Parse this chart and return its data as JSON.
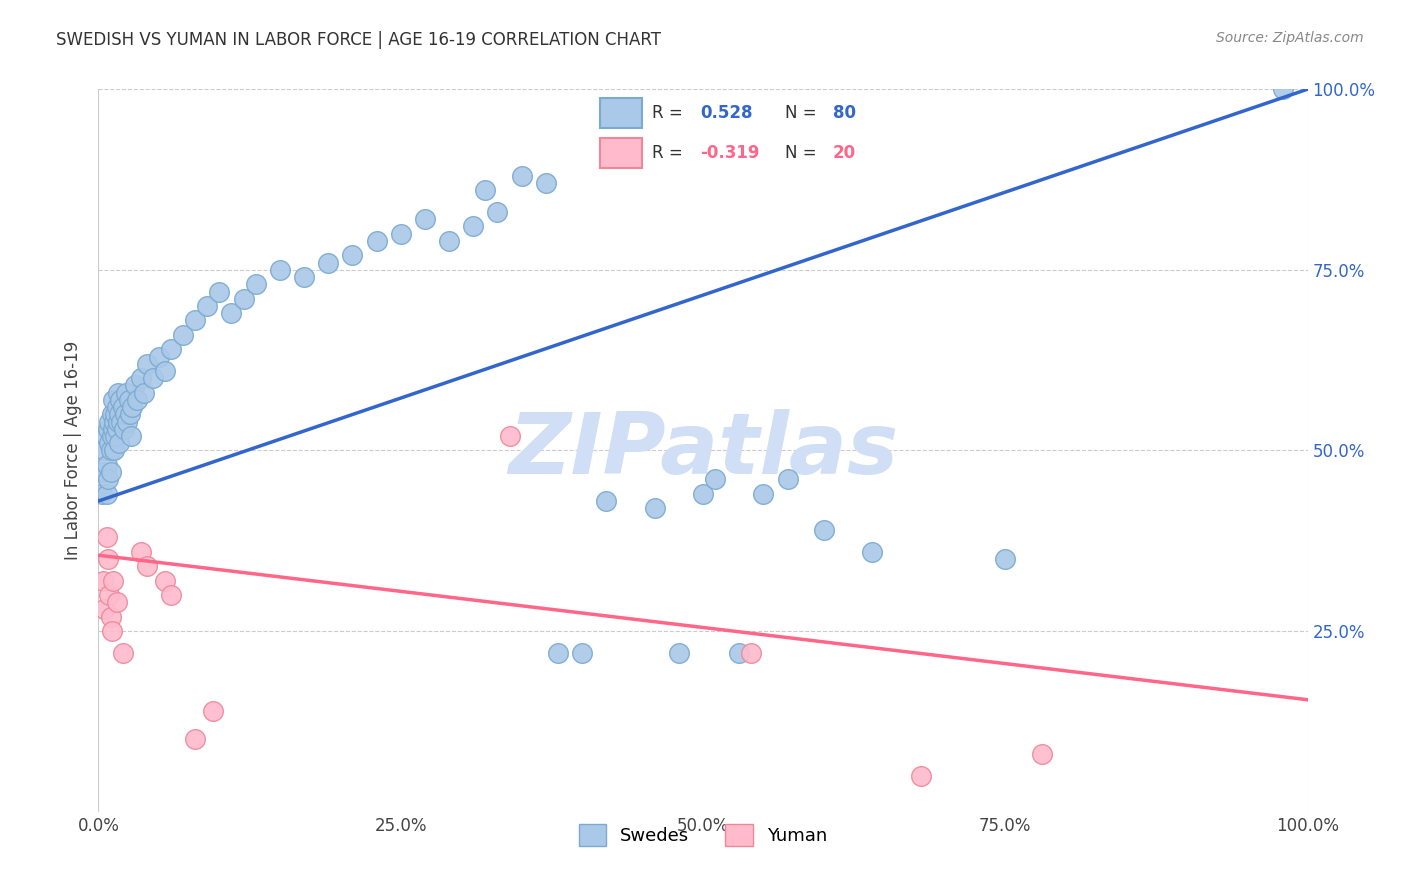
{
  "title": "SWEDISH VS YUMAN IN LABOR FORCE | AGE 16-19 CORRELATION CHART",
  "source": "Source: ZipAtlas.com",
  "ylabel": "In Labor Force | Age 16-19",
  "xlim": [
    0.0,
    1.0
  ],
  "ylim": [
    0.0,
    1.0
  ],
  "xtick_labels": [
    "0.0%",
    "25.0%",
    "50.0%",
    "75.0%",
    "100.0%"
  ],
  "xtick_positions": [
    0.0,
    0.25,
    0.5,
    0.75,
    1.0
  ],
  "ytick_labels_right": [
    "100.0%",
    "75.0%",
    "50.0%",
    "25.0%"
  ],
  "ytick_positions_right": [
    1.0,
    0.75,
    0.5,
    0.25
  ],
  "swedes_color": "#aac8e8",
  "swedes_edge": "#7aaad0",
  "yuman_color": "#ffbbcc",
  "yuman_edge": "#ee8899",
  "swedes_line_color": "#3366cc",
  "yuman_line_color": "#ff6688",
  "watermark": "ZIPatlas",
  "watermark_color": "#d0dff5",
  "swedes_line_x0": 0.0,
  "swedes_line_y0": 0.43,
  "swedes_line_x1": 1.0,
  "swedes_line_y1": 1.0,
  "yuman_line_x0": 0.0,
  "yuman_line_y0": 0.355,
  "yuman_line_x1": 1.0,
  "yuman_line_y1": 0.155,
  "swedes_points": [
    [
      0.003,
      0.44
    ],
    [
      0.004,
      0.47
    ],
    [
      0.005,
      0.5
    ],
    [
      0.006,
      0.52
    ],
    [
      0.007,
      0.48
    ],
    [
      0.007,
      0.44
    ],
    [
      0.008,
      0.53
    ],
    [
      0.008,
      0.46
    ],
    [
      0.009,
      0.51
    ],
    [
      0.009,
      0.54
    ],
    [
      0.01,
      0.5
    ],
    [
      0.01,
      0.47
    ],
    [
      0.011,
      0.55
    ],
    [
      0.011,
      0.52
    ],
    [
      0.012,
      0.53
    ],
    [
      0.012,
      0.57
    ],
    [
      0.013,
      0.54
    ],
    [
      0.013,
      0.5
    ],
    [
      0.014,
      0.55
    ],
    [
      0.014,
      0.52
    ],
    [
      0.015,
      0.56
    ],
    [
      0.015,
      0.53
    ],
    [
      0.016,
      0.54
    ],
    [
      0.016,
      0.58
    ],
    [
      0.017,
      0.55
    ],
    [
      0.017,
      0.51
    ],
    [
      0.018,
      0.57
    ],
    [
      0.019,
      0.54
    ],
    [
      0.02,
      0.56
    ],
    [
      0.021,
      0.53
    ],
    [
      0.022,
      0.55
    ],
    [
      0.023,
      0.58
    ],
    [
      0.024,
      0.54
    ],
    [
      0.025,
      0.57
    ],
    [
      0.026,
      0.55
    ],
    [
      0.027,
      0.52
    ],
    [
      0.028,
      0.56
    ],
    [
      0.03,
      0.59
    ],
    [
      0.032,
      0.57
    ],
    [
      0.035,
      0.6
    ],
    [
      0.038,
      0.58
    ],
    [
      0.04,
      0.62
    ],
    [
      0.045,
      0.6
    ],
    [
      0.05,
      0.63
    ],
    [
      0.055,
      0.61
    ],
    [
      0.06,
      0.64
    ],
    [
      0.07,
      0.66
    ],
    [
      0.08,
      0.68
    ],
    [
      0.09,
      0.7
    ],
    [
      0.1,
      0.72
    ],
    [
      0.11,
      0.69
    ],
    [
      0.12,
      0.71
    ],
    [
      0.13,
      0.73
    ],
    [
      0.15,
      0.75
    ],
    [
      0.17,
      0.74
    ],
    [
      0.19,
      0.76
    ],
    [
      0.21,
      0.77
    ],
    [
      0.23,
      0.79
    ],
    [
      0.25,
      0.8
    ],
    [
      0.27,
      0.82
    ],
    [
      0.29,
      0.79
    ],
    [
      0.31,
      0.81
    ],
    [
      0.32,
      0.86
    ],
    [
      0.33,
      0.83
    ],
    [
      0.35,
      0.88
    ],
    [
      0.37,
      0.87
    ],
    [
      0.38,
      0.22
    ],
    [
      0.4,
      0.22
    ],
    [
      0.42,
      0.43
    ],
    [
      0.46,
      0.42
    ],
    [
      0.48,
      0.22
    ],
    [
      0.5,
      0.44
    ],
    [
      0.51,
      0.46
    ],
    [
      0.53,
      0.22
    ],
    [
      0.55,
      0.44
    ],
    [
      0.57,
      0.46
    ],
    [
      0.6,
      0.39
    ],
    [
      0.64,
      0.36
    ],
    [
      0.75,
      0.35
    ],
    [
      0.98,
      1.0
    ]
  ],
  "yuman_points": [
    [
      0.004,
      0.32
    ],
    [
      0.005,
      0.28
    ],
    [
      0.007,
      0.38
    ],
    [
      0.008,
      0.35
    ],
    [
      0.009,
      0.3
    ],
    [
      0.01,
      0.27
    ],
    [
      0.011,
      0.25
    ],
    [
      0.012,
      0.32
    ],
    [
      0.015,
      0.29
    ],
    [
      0.02,
      0.22
    ],
    [
      0.035,
      0.36
    ],
    [
      0.04,
      0.34
    ],
    [
      0.055,
      0.32
    ],
    [
      0.06,
      0.3
    ],
    [
      0.08,
      0.1
    ],
    [
      0.095,
      0.14
    ],
    [
      0.34,
      0.52
    ],
    [
      0.54,
      0.22
    ],
    [
      0.68,
      0.05
    ],
    [
      0.78,
      0.08
    ]
  ]
}
